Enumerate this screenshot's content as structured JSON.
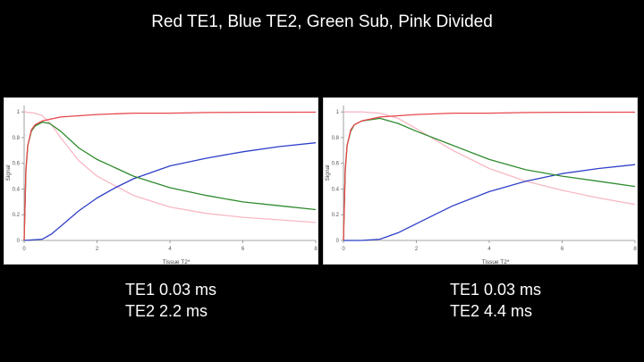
{
  "slide": {
    "title": "Red TE1, Blue TE2, Green Sub, Pink Divided"
  },
  "captions": [
    {
      "line1": "TE1 0.03 ms",
      "line2": "TE2 2.2 ms"
    },
    {
      "line1": "TE1 0.03 ms",
      "line2": "TE2 4.4 ms"
    }
  ],
  "colors": {
    "red": "#e8474c",
    "blue": "#2f3fc9",
    "green": "#2e8b2e",
    "pink": "#f7b8c4"
  },
  "chart_data": [
    {
      "type": "line",
      "xlabel": "Tissue T2*",
      "ylabel": "Signal",
      "xlim": [
        0,
        8
      ],
      "ylim": [
        0,
        1.05
      ],
      "xticks": [
        "0",
        "2",
        "4",
        "6",
        "8"
      ],
      "yticks": [
        "0",
        "0.2",
        "0.4",
        "0.6",
        "0.8",
        "1"
      ],
      "grid": false,
      "series": [
        {
          "color": "red",
          "points": [
            [
              0,
              0
            ],
            [
              0.05,
              0.55
            ],
            [
              0.1,
              0.74
            ],
            [
              0.2,
              0.86
            ],
            [
              0.3,
              0.9
            ],
            [
              0.5,
              0.93
            ],
            [
              1,
              0.96
            ],
            [
              2,
              0.98
            ],
            [
              3,
              0.99
            ],
            [
              4,
              0.99
            ],
            [
              5,
              0.995
            ],
            [
              6,
              0.997
            ],
            [
              8,
              0.998
            ]
          ]
        },
        {
          "color": "blue",
          "points": [
            [
              0,
              0
            ],
            [
              0.5,
              0.01
            ],
            [
              0.75,
              0.05
            ],
            [
              1,
              0.11
            ],
            [
              1.5,
              0.23
            ],
            [
              2,
              0.33
            ],
            [
              2.5,
              0.41
            ],
            [
              3,
              0.48
            ],
            [
              4,
              0.58
            ],
            [
              5,
              0.64
            ],
            [
              6,
              0.69
            ],
            [
              7,
              0.73
            ],
            [
              8,
              0.76
            ]
          ]
        },
        {
          "color": "green",
          "points": [
            [
              0,
              0
            ],
            [
              0.05,
              0.55
            ],
            [
              0.1,
              0.74
            ],
            [
              0.2,
              0.85
            ],
            [
              0.3,
              0.89
            ],
            [
              0.5,
              0.92
            ],
            [
              0.7,
              0.91
            ],
            [
              1,
              0.85
            ],
            [
              1.5,
              0.72
            ],
            [
              2,
              0.63
            ],
            [
              3,
              0.5
            ],
            [
              4,
              0.41
            ],
            [
              5,
              0.35
            ],
            [
              6,
              0.3
            ],
            [
              7,
              0.27
            ],
            [
              8,
              0.24
            ]
          ]
        },
        {
          "color": "pink",
          "points": [
            [
              0,
              1
            ],
            [
              0.3,
              0.99
            ],
            [
              0.5,
              0.97
            ],
            [
              0.75,
              0.9
            ],
            [
              1,
              0.8
            ],
            [
              1.5,
              0.62
            ],
            [
              2,
              0.5
            ],
            [
              3,
              0.35
            ],
            [
              4,
              0.26
            ],
            [
              5,
              0.21
            ],
            [
              6,
              0.18
            ],
            [
              7,
              0.16
            ],
            [
              8,
              0.14
            ]
          ]
        }
      ]
    },
    {
      "type": "line",
      "xlabel": "Tissue T2*",
      "ylabel": "Signal",
      "xlim": [
        0,
        8
      ],
      "ylim": [
        0,
        1.05
      ],
      "xticks": [
        "0",
        "2",
        "4",
        "6",
        "8"
      ],
      "yticks": [
        "0",
        "0.2",
        "0.4",
        "0.6",
        "0.8",
        "1"
      ],
      "grid": false,
      "series": [
        {
          "color": "red",
          "points": [
            [
              0,
              0
            ],
            [
              0.05,
              0.55
            ],
            [
              0.1,
              0.74
            ],
            [
              0.2,
              0.86
            ],
            [
              0.3,
              0.9
            ],
            [
              0.5,
              0.93
            ],
            [
              1,
              0.96
            ],
            [
              2,
              0.98
            ],
            [
              3,
              0.99
            ],
            [
              4,
              0.99
            ],
            [
              5,
              0.995
            ],
            [
              6,
              0.997
            ],
            [
              8,
              0.998
            ]
          ]
        },
        {
          "color": "blue",
          "points": [
            [
              0,
              0
            ],
            [
              0.5,
              0.0
            ],
            [
              1,
              0.01
            ],
            [
              1.5,
              0.06
            ],
            [
              2,
              0.13
            ],
            [
              2.5,
              0.2
            ],
            [
              3,
              0.27
            ],
            [
              4,
              0.38
            ],
            [
              5,
              0.46
            ],
            [
              6,
              0.52
            ],
            [
              7,
              0.56
            ],
            [
              8,
              0.59
            ]
          ]
        },
        {
          "color": "green",
          "points": [
            [
              0,
              0
            ],
            [
              0.05,
              0.55
            ],
            [
              0.1,
              0.74
            ],
            [
              0.2,
              0.85
            ],
            [
              0.3,
              0.9
            ],
            [
              0.5,
              0.93
            ],
            [
              1,
              0.95
            ],
            [
              1.5,
              0.91
            ],
            [
              2,
              0.85
            ],
            [
              3,
              0.74
            ],
            [
              4,
              0.63
            ],
            [
              5,
              0.55
            ],
            [
              6,
              0.5
            ],
            [
              7,
              0.46
            ],
            [
              8,
              0.42
            ]
          ]
        },
        {
          "color": "pink",
          "points": [
            [
              0,
              1
            ],
            [
              0.5,
              1
            ],
            [
              1,
              0.99
            ],
            [
              1.5,
              0.95
            ],
            [
              2,
              0.87
            ],
            [
              3,
              0.7
            ],
            [
              4,
              0.56
            ],
            [
              5,
              0.46
            ],
            [
              6,
              0.39
            ],
            [
              7,
              0.33
            ],
            [
              8,
              0.28
            ]
          ]
        }
      ]
    }
  ]
}
